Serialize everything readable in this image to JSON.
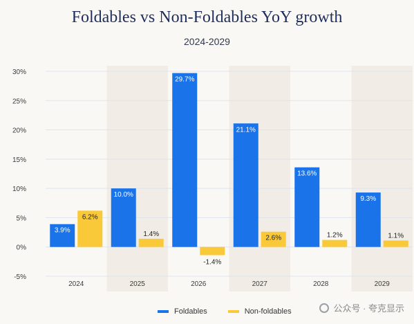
{
  "chart_data": {
    "type": "bar",
    "title": "Foldables vs Non-Foldables YoY growth",
    "subtitle": "2024-2029",
    "categories": [
      "2024",
      "2025",
      "2026",
      "2027",
      "2028",
      "2029"
    ],
    "series": [
      {
        "name": "Foldables",
        "color": "#1a73e8",
        "values": [
          3.9,
          10.0,
          29.7,
          21.1,
          13.6,
          9.3
        ],
        "labels": [
          "3.9%",
          "10.0%",
          "29.7%",
          "21.1%",
          "13.6%",
          "9.3%"
        ]
      },
      {
        "name": "Non-foldables",
        "color": "#f9c93a",
        "values": [
          6.2,
          1.4,
          -1.4,
          2.6,
          1.2,
          1.1
        ],
        "labels": [
          "6.2%",
          "1.4%",
          "-1.4%",
          "2.6%",
          "1.2%",
          "1.1%"
        ]
      }
    ],
    "y_ticks": [
      "30%",
      "25%",
      "20%",
      "15%",
      "10%",
      "5%",
      "0%",
      "-5%"
    ],
    "y_tick_values": [
      30,
      25,
      20,
      15,
      10,
      5,
      0,
      -5
    ],
    "ylim": [
      -5,
      30
    ],
    "xlabel": "",
    "ylabel": "",
    "grid": true,
    "legend_position": "bottom"
  },
  "watermark": {
    "text": "公众号 · 夸克显示",
    "icon": "wechat-icon"
  }
}
